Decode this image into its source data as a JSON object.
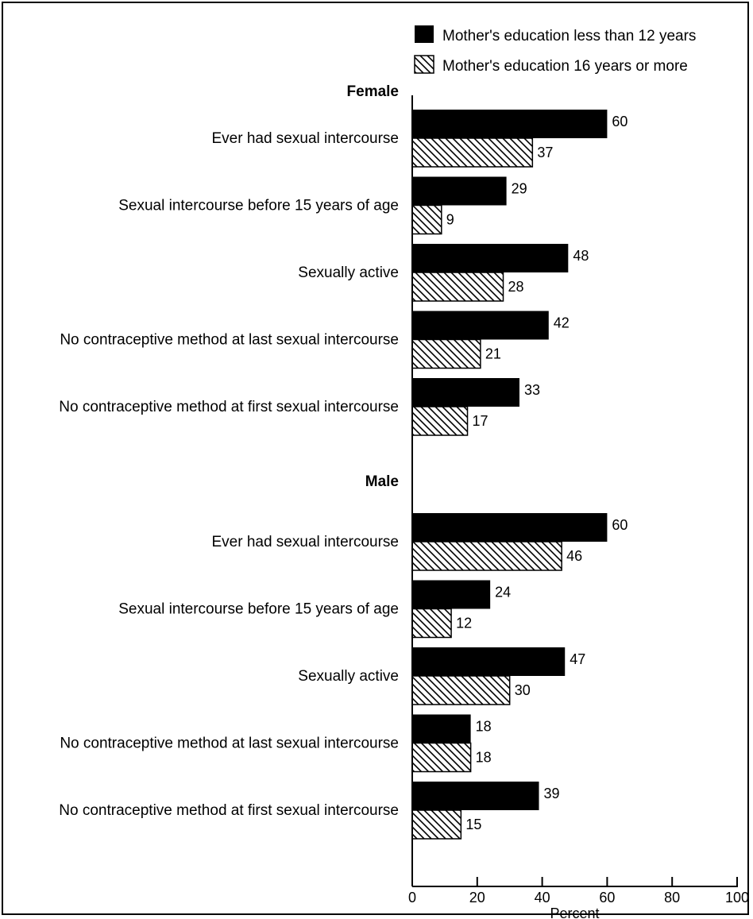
{
  "chart_data": {
    "type": "bar",
    "orientation": "horizontal",
    "xlabel": "Percent",
    "xlim": [
      0,
      100
    ],
    "xticks": [
      0,
      20,
      40,
      60,
      80,
      100
    ],
    "legend_position": "top-right",
    "series": [
      {
        "name": "Mother's education less than 12 years",
        "fill": "solid",
        "color": "#000000"
      },
      {
        "name": "Mother's education 16 years or more",
        "fill": "diagonal-hatch",
        "color": "#000000"
      }
    ],
    "groups": [
      {
        "name": "Female",
        "categories": [
          "Ever had sexual intercourse",
          "Sexual intercourse before 15 years of age",
          "Sexually active",
          "No  contraceptive method at last sexual intercourse",
          "No contraceptive method at first sexual intercourse"
        ],
        "values": [
          [
            60,
            37
          ],
          [
            29,
            9
          ],
          [
            48,
            28
          ],
          [
            42,
            21
          ],
          [
            33,
            17
          ]
        ]
      },
      {
        "name": "Male",
        "categories": [
          "Ever had sexual intercourse",
          "Sexual intercourse before 15 years of age",
          "Sexually active",
          "No contraceptive method at last sexual intercourse",
          "No contraceptive method at first sexual intercourse"
        ],
        "values": [
          [
            60,
            46
          ],
          [
            24,
            12
          ],
          [
            47,
            30
          ],
          [
            18,
            18
          ],
          [
            39,
            15
          ]
        ]
      }
    ]
  }
}
